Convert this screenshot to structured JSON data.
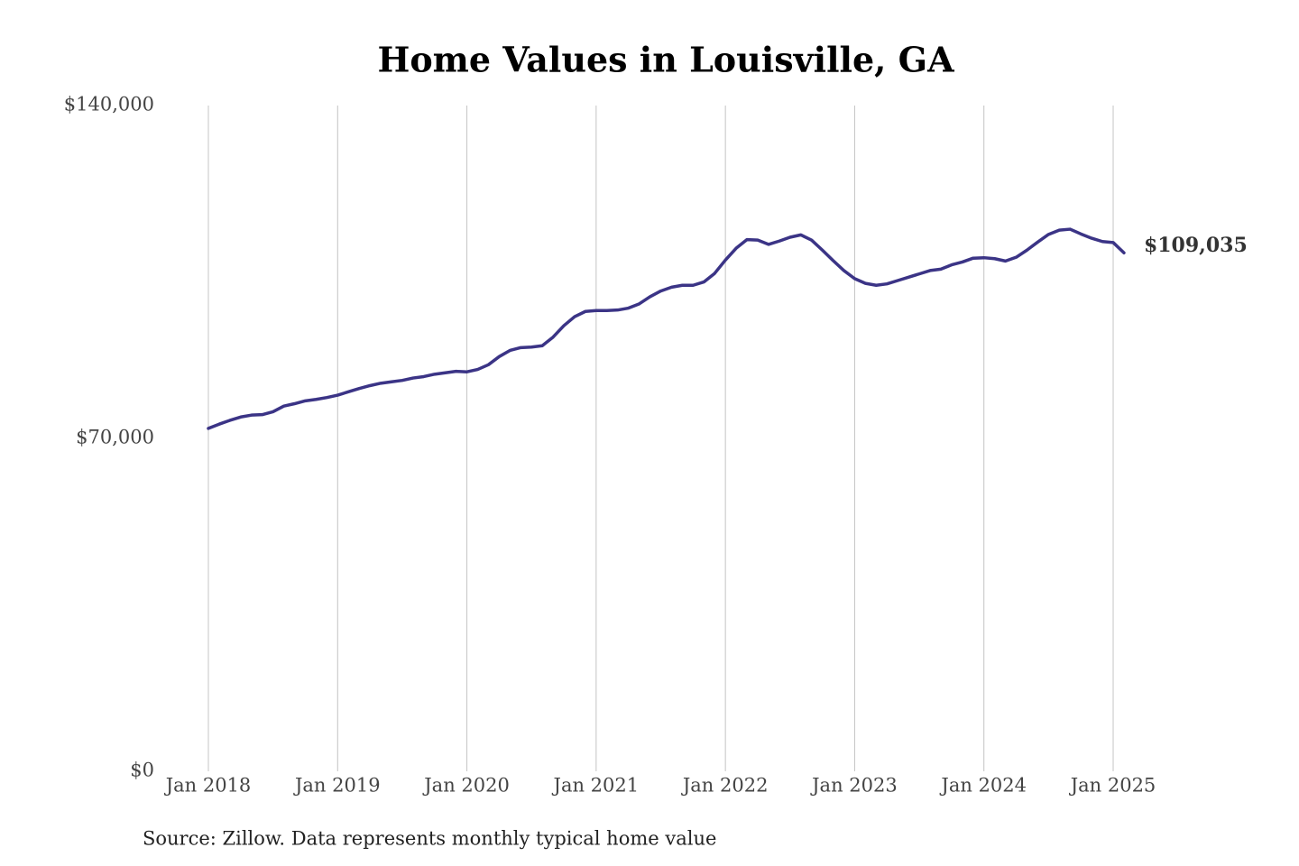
{
  "chart_data": {
    "type": "line",
    "title": "Home Values in Louisville, GA",
    "source": "Source: Zillow. Data represents monthly typical home value",
    "color": "#3b3486",
    "x": [
      "2018-01",
      "2018-02",
      "2018-03",
      "2018-04",
      "2018-05",
      "2018-06",
      "2018-07",
      "2018-08",
      "2018-09",
      "2018-10",
      "2018-11",
      "2018-12",
      "2019-01",
      "2019-02",
      "2019-03",
      "2019-04",
      "2019-05",
      "2019-06",
      "2019-07",
      "2019-08",
      "2019-09",
      "2019-10",
      "2019-11",
      "2019-12",
      "2020-01",
      "2020-02",
      "2020-03",
      "2020-04",
      "2020-05",
      "2020-06",
      "2020-07",
      "2020-08",
      "2020-09",
      "2020-10",
      "2020-11",
      "2020-12",
      "2021-01",
      "2021-02",
      "2021-03",
      "2021-04",
      "2021-05",
      "2021-06",
      "2021-07",
      "2021-08",
      "2021-09",
      "2021-10",
      "2021-11",
      "2021-12",
      "2022-01",
      "2022-02",
      "2022-03",
      "2022-04",
      "2022-05",
      "2022-06",
      "2022-07",
      "2022-08",
      "2022-09",
      "2022-10",
      "2022-11",
      "2022-12",
      "2023-01",
      "2023-02",
      "2023-03",
      "2023-04",
      "2023-05",
      "2023-06",
      "2023-07",
      "2023-08",
      "2023-09",
      "2023-10",
      "2023-11",
      "2023-12",
      "2024-01",
      "2024-02",
      "2024-03",
      "2024-04",
      "2024-05",
      "2024-06",
      "2024-07",
      "2024-08",
      "2024-09",
      "2024-10",
      "2024-11",
      "2024-12",
      "2025-01",
      "2025-02"
    ],
    "values": [
      72100,
      73000,
      73800,
      74500,
      74900,
      75000,
      75600,
      76800,
      77300,
      77900,
      78200,
      78600,
      79100,
      79800,
      80500,
      81100,
      81600,
      81900,
      82200,
      82700,
      83000,
      83500,
      83800,
      84100,
      84000,
      84500,
      85500,
      87200,
      88500,
      89100,
      89200,
      89500,
      91300,
      93700,
      95600,
      96700,
      96900,
      96900,
      97000,
      97400,
      98300,
      99800,
      101000,
      101800,
      102200,
      102200,
      102900,
      104700,
      107500,
      110000,
      111800,
      111700,
      110800,
      111500,
      112300,
      112800,
      111700,
      109600,
      107400,
      105300,
      103600,
      102600,
      102200,
      102500,
      103200,
      103900,
      104600,
      105300,
      105600,
      106500,
      107100,
      107900,
      108000,
      107800,
      107300,
      108100,
      109600,
      111300,
      112900,
      113800,
      114000,
      113000,
      112100,
      111400,
      111200,
      109035
    ],
    "value_labels": [
      null,
      null,
      null,
      null,
      null,
      null,
      null,
      null,
      null,
      null,
      null,
      null,
      null,
      null,
      null,
      null,
      null,
      null,
      null,
      null,
      null,
      null,
      null,
      null,
      null,
      null,
      null,
      null,
      null,
      null,
      null,
      null,
      null,
      null,
      null,
      null,
      null,
      null,
      null,
      null,
      null,
      null,
      null,
      null,
      null,
      null,
      null,
      null,
      null,
      null,
      null,
      null,
      null,
      null,
      null,
      null,
      null,
      null,
      null,
      null,
      null,
      null,
      null,
      null,
      null,
      null,
      null,
      null,
      null,
      null,
      null,
      null,
      null,
      null,
      null,
      null,
      null,
      null,
      null,
      null,
      null,
      null,
      null,
      null,
      null,
      "$109,035"
    ],
    "ylim": [
      0,
      140000
    ],
    "yticks": [
      {
        "value": 0,
        "label": "$0"
      },
      {
        "value": 70000,
        "label": "$70,000"
      },
      {
        "value": 140000,
        "label": "$140,000"
      }
    ],
    "xticks": [
      {
        "value": "2018-01",
        "label": "Jan 2018"
      },
      {
        "value": "2019-01",
        "label": "Jan 2019"
      },
      {
        "value": "2020-01",
        "label": "Jan 2020"
      },
      {
        "value": "2021-01",
        "label": "Jan 2021"
      },
      {
        "value": "2022-01",
        "label": "Jan 2022"
      },
      {
        "value": "2023-01",
        "label": "Jan 2023"
      },
      {
        "value": "2024-01",
        "label": "Jan 2024"
      },
      {
        "value": "2025-01",
        "label": "Jan 2025"
      }
    ],
    "grid": "x"
  }
}
